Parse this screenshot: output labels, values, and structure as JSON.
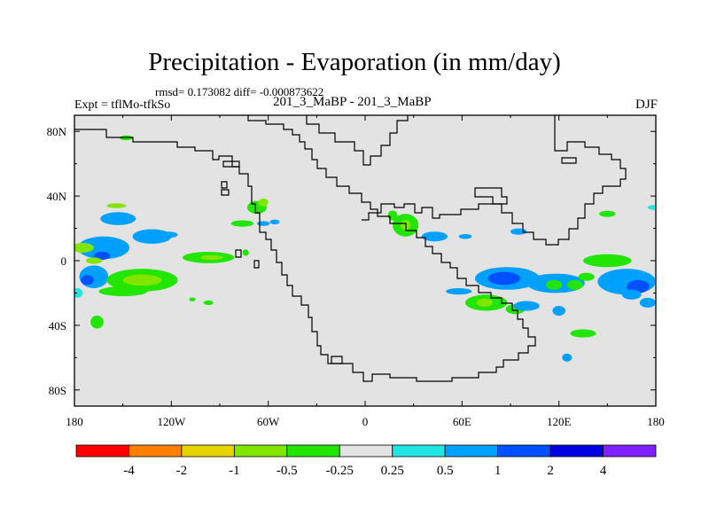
{
  "chart_data": {
    "type": "contour-map",
    "title": "Precipitation - Evaporation (in mm/day)",
    "subtitle": "rmsd= 0.173082 diff= -0.000873622",
    "left_label": "Expt = tflMo-tfkSo",
    "center_label": "201_3_MaBP - 201_3_MaBP",
    "right_label": "DJF",
    "x_ticks": [
      "180",
      "120W",
      "60W",
      "0",
      "60E",
      "120E",
      "180"
    ],
    "x_tick_values": [
      -180,
      -120,
      -60,
      0,
      60,
      120,
      180
    ],
    "y_ticks": [
      "80N",
      "40N",
      "0",
      "40S",
      "80S"
    ],
    "y_tick_values": [
      80,
      40,
      0,
      -40,
      -80
    ],
    "xlim": [
      -180,
      180
    ],
    "ylim": [
      -90,
      90
    ],
    "background_color": "#e3e3e3",
    "colorbar": {
      "colors": [
        "#ff0000",
        "#ff8000",
        "#e6d400",
        "#80e600",
        "#22e600",
        "#e3e3e3",
        "#20e5e0",
        "#00a0ff",
        "#0050ff",
        "#0000e0",
        "#8020ff"
      ],
      "labels": [
        "-4",
        "-2",
        "-1",
        "-0.5",
        "-0.25",
        "0.25",
        "0.5",
        "1",
        "2",
        "4"
      ]
    },
    "blobs": [
      {
        "lon": -154,
        "lat": 34,
        "rlon": 6,
        "rlat": 1.5,
        "level": -0.5
      },
      {
        "lon": -153,
        "lat": 26,
        "rlon": 11,
        "rlat": 4,
        "level": 0.5
      },
      {
        "lon": -132,
        "lat": 15,
        "rlon": 12,
        "rlat": 4.5,
        "level": 0.5
      },
      {
        "lon": -122,
        "lat": 16,
        "rlon": 6,
        "rlat": 2,
        "level": 0.5
      },
      {
        "lon": -162,
        "lat": 8,
        "rlon": 16,
        "rlat": 7,
        "level": 0.5
      },
      {
        "lon": -163,
        "lat": 3,
        "rlon": 5,
        "rlat": 2.5,
        "level": 1
      },
      {
        "lon": -175,
        "lat": 8,
        "rlon": 7,
        "rlat": 3,
        "level": -0.5
      },
      {
        "lon": -168,
        "lat": 0,
        "rlon": 5,
        "rlat": 2,
        "level": -0.5
      },
      {
        "lon": -168,
        "lat": -10,
        "rlon": 9,
        "rlat": 7,
        "level": 0.5
      },
      {
        "lon": -172,
        "lat": -12,
        "rlon": 4,
        "rlat": 3,
        "level": 1
      },
      {
        "lon": -178,
        "lat": -20,
        "rlon": 3,
        "rlat": 3,
        "level": 0.25
      },
      {
        "lon": -138,
        "lat": -12,
        "rlon": 22,
        "rlat": 7,
        "level": -0.25
      },
      {
        "lon": -138,
        "lat": -12,
        "rlon": 12,
        "rlat": 3.5,
        "level": -0.5
      },
      {
        "lon": -150,
        "lat": -19,
        "rlon": 15,
        "rlat": 3,
        "level": -0.25
      },
      {
        "lon": -97,
        "lat": 2,
        "rlon": 16,
        "rlat": 3.5,
        "level": -0.25
      },
      {
        "lon": -95,
        "lat": 2,
        "rlon": 7,
        "rlat": 1.5,
        "level": -0.5
      },
      {
        "lon": -166,
        "lat": -38,
        "rlon": 4,
        "rlat": 4,
        "level": -0.25
      },
      {
        "lon": -97,
        "lat": -26,
        "rlon": 3,
        "rlat": 1.5,
        "level": -0.25
      },
      {
        "lon": -107,
        "lat": -24,
        "rlon": 2,
        "rlat": 1.2,
        "level": -0.25
      },
      {
        "lon": -67,
        "lat": 33,
        "rlon": 6,
        "rlat": 4,
        "level": -0.25
      },
      {
        "lon": -63,
        "lat": 36,
        "rlon": 3,
        "rlat": 2.5,
        "level": -0.5
      },
      {
        "lon": -76,
        "lat": 23,
        "rlon": 7,
        "rlat": 2,
        "level": -0.25
      },
      {
        "lon": -63,
        "lat": 23,
        "rlon": 4,
        "rlat": 1.5,
        "level": 0.5
      },
      {
        "lon": -56,
        "lat": 24,
        "rlon": 3,
        "rlat": 1.5,
        "level": 0.5
      },
      {
        "lon": -74,
        "lat": 5,
        "rlon": 2,
        "rlat": 2,
        "level": -0.25
      },
      {
        "lon": -148,
        "lat": 76,
        "rlon": 4,
        "rlat": 1.5,
        "level": -0.25
      },
      {
        "lon": 25,
        "lat": 22,
        "rlon": 8,
        "rlat": 7,
        "level": -0.25
      },
      {
        "lon": 25,
        "lat": 22,
        "rlon": 3,
        "rlat": 3,
        "level": -0.5
      },
      {
        "lon": 17,
        "lat": 28,
        "rlon": 3,
        "rlat": 3,
        "level": -0.25
      },
      {
        "lon": 43,
        "lat": 15,
        "rlon": 8,
        "rlat": 3,
        "level": 0.5
      },
      {
        "lon": 62,
        "lat": 15,
        "rlon": 4,
        "rlat": 1.5,
        "level": 0.5
      },
      {
        "lon": 95,
        "lat": 18,
        "rlon": 5,
        "rlat": 2,
        "level": 0.5
      },
      {
        "lon": 150,
        "lat": 29,
        "rlon": 5,
        "rlat": 2,
        "level": -0.25
      },
      {
        "lon": 178,
        "lat": 33,
        "rlon": 3,
        "rlat": 1.5,
        "level": 0.25
      },
      {
        "lon": 150,
        "lat": 0,
        "rlon": 15,
        "rlat": 4,
        "level": -0.25
      },
      {
        "lon": 88,
        "lat": -11,
        "rlon": 20,
        "rlat": 7,
        "level": 0.5
      },
      {
        "lon": 86,
        "lat": -11,
        "rlon": 10,
        "rlat": 4,
        "level": 1
      },
      {
        "lon": 118,
        "lat": -14,
        "rlon": 18,
        "rlat": 6,
        "level": 0.5
      },
      {
        "lon": 117,
        "lat": -15,
        "rlon": 5,
        "rlat": 3,
        "level": -0.25
      },
      {
        "lon": 130,
        "lat": -15,
        "rlon": 5,
        "rlat": 3,
        "level": -0.25
      },
      {
        "lon": 137,
        "lat": -10,
        "rlon": 5,
        "rlat": 2.5,
        "level": -0.25
      },
      {
        "lon": 162,
        "lat": -13,
        "rlon": 18,
        "rlat": 8,
        "level": 0.5
      },
      {
        "lon": 169,
        "lat": -16,
        "rlon": 7,
        "rlat": 4,
        "level": 1
      },
      {
        "lon": 165,
        "lat": -21,
        "rlon": 6,
        "rlat": 3,
        "level": 0.5
      },
      {
        "lon": 75,
        "lat": -26,
        "rlon": 13,
        "rlat": 5,
        "level": -0.25
      },
      {
        "lon": 74,
        "lat": -26,
        "rlon": 5,
        "rlat": 2.5,
        "level": -0.5
      },
      {
        "lon": 93,
        "lat": -30,
        "rlon": 6,
        "rlat": 3,
        "level": -0.25
      },
      {
        "lon": 58,
        "lat": -19,
        "rlon": 8,
        "rlat": 2,
        "level": 0.5
      },
      {
        "lon": 100,
        "lat": -28,
        "rlon": 8,
        "rlat": 3,
        "level": 0.5
      },
      {
        "lon": 120,
        "lat": -31,
        "rlon": 4,
        "rlat": 3,
        "level": 0.5
      },
      {
        "lon": 135,
        "lat": -45,
        "rlon": 8,
        "rlat": 2.5,
        "level": -0.25
      },
      {
        "lon": 125,
        "lat": -60,
        "rlon": 3,
        "rlat": 2.5,
        "level": 0.5
      },
      {
        "lon": 175,
        "lat": -26,
        "rlon": 5,
        "rlat": 3,
        "level": 0.5
      }
    ]
  }
}
